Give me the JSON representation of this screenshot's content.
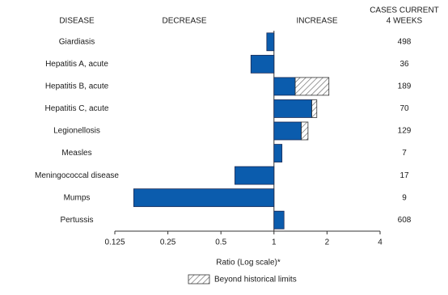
{
  "chart_data": {
    "type": "bar",
    "orientation": "horizontal",
    "category_header": "DISEASE",
    "decrease_label": "DECREASE",
    "increase_label": "INCREASE",
    "cases_header": [
      "CASES CURRENT",
      "4 WEEKS"
    ],
    "xlabel": "Ratio (Log scale)*",
    "categories": [
      "Giardiasis",
      "Hepatitis A, acute",
      "Hepatitis B, acute",
      "Hepatitis C, acute",
      "Legionellosis",
      "Measles",
      "Meningococcal disease",
      "Mumps",
      "Pertussis"
    ],
    "values": [
      0.91,
      0.74,
      2.05,
      1.75,
      1.56,
      1.11,
      0.6,
      0.16,
      1.14
    ],
    "color": "#0b5cad",
    "beyond_limits": {
      "name": "Beyond historical limits",
      "values": [
        null,
        null,
        1.32,
        null,
        null,
        null,
        null,
        null,
        null
      ],
      "value_ends": [
        null,
        null,
        null,
        null,
        null,
        null,
        null,
        null,
        null
      ]
    },
    "cases": [
      498,
      36,
      189,
      70,
      129,
      7,
      17,
      9,
      608
    ],
    "hatch_starts": [
      null,
      null,
      1.32,
      1.64,
      1.43,
      null,
      null,
      null,
      null
    ],
    "log_x": true,
    "xlim": [
      0.125,
      4
    ],
    "xticks": [
      0.125,
      0.25,
      0.5,
      1,
      2,
      4
    ]
  }
}
